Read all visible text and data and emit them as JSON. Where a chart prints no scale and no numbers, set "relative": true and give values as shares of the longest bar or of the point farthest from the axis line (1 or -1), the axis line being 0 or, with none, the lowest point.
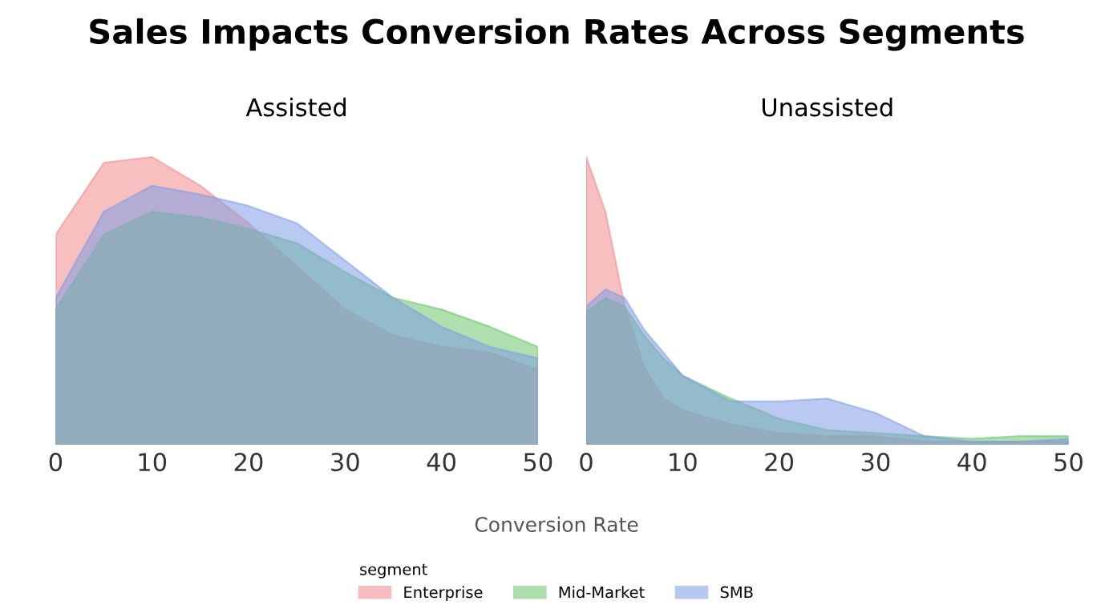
{
  "chart_data": [
    {
      "type": "area",
      "title": "Sales Impacts Conversion Rates Across Segments",
      "subtitle": "Assisted",
      "xlabel": "Conversion Rate",
      "legend_title": "segment",
      "legend": "bottom",
      "relative": true,
      "x": [
        0,
        5,
        10,
        15,
        20,
        25,
        30,
        35,
        40,
        45,
        50
      ],
      "xlim": [
        0,
        50
      ],
      "xticks": [
        0,
        10,
        20,
        30,
        40,
        50
      ],
      "series": [
        {
          "name": "Enterprise",
          "color": "#f08a8a",
          "values": [
            0.73,
            0.98,
            1,
            0.9,
            0.77,
            0.62,
            0.47,
            0.38,
            0.34,
            0.32,
            0.26
          ]
        },
        {
          "name": "Mid-Market",
          "color": "#6cc46c",
          "values": [
            0.47,
            0.73,
            0.81,
            0.79,
            0.75,
            0.7,
            0.6,
            0.51,
            0.47,
            0.41,
            0.34
          ]
        },
        {
          "name": "SMB",
          "color": "#7f9de6",
          "values": [
            0.51,
            0.81,
            0.9,
            0.87,
            0.83,
            0.77,
            0.64,
            0.51,
            0.41,
            0.34,
            0.3
          ]
        }
      ]
    },
    {
      "type": "area",
      "title": "Unassisted",
      "relative": true,
      "x": [
        0,
        2,
        4,
        6,
        8,
        10,
        15,
        20,
        25,
        30,
        35,
        40,
        45,
        50
      ],
      "xlim": [
        0,
        50
      ],
      "xticks": [
        0,
        10,
        20,
        30,
        40,
        50
      ],
      "series": [
        {
          "color": "#f08a8a",
          "values": [
            1,
            0.81,
            0.48,
            0.27,
            0.16,
            0.12,
            0.07,
            0.04,
            0.03,
            0.03,
            0.01,
            0.01,
            0.01,
            0.01
          ]
        },
        {
          "color": "#6cc46c",
          "values": [
            0.46,
            0.51,
            0.48,
            0.38,
            0.3,
            0.24,
            0.16,
            0.09,
            0.05,
            0.04,
            0.03,
            0.02,
            0.03,
            0.03
          ]
        },
        {
          "color": "#7f9de6",
          "values": [
            0.48,
            0.54,
            0.51,
            0.4,
            0.32,
            0.24,
            0.15,
            0.15,
            0.16,
            0.11,
            0.03,
            0.01,
            0.01,
            0.02
          ]
        }
      ]
    }
  ]
}
